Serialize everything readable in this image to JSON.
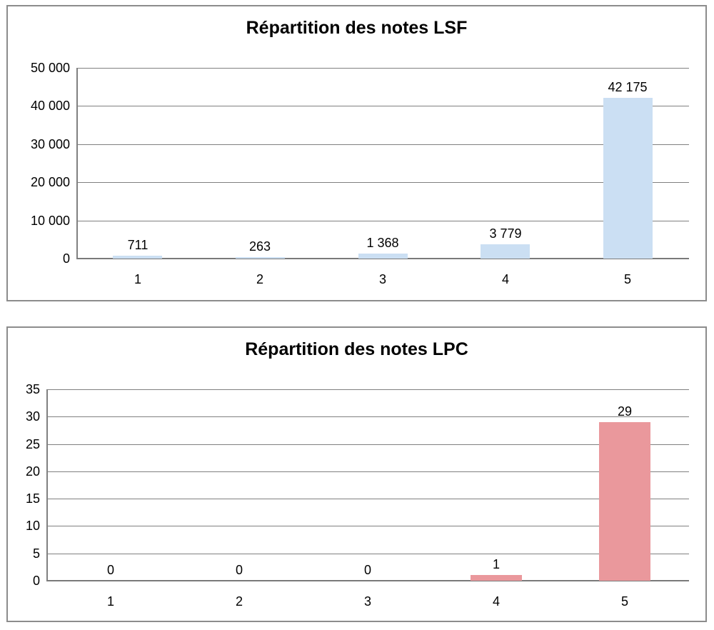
{
  "chart_data": [
    {
      "type": "bar",
      "title": "Répartition des notes LSF",
      "categories": [
        "1",
        "2",
        "3",
        "4",
        "5"
      ],
      "values": [
        711,
        263,
        1368,
        3779,
        42175
      ],
      "value_labels": [
        "711",
        "263",
        "1 368",
        "3 779",
        "42 175"
      ],
      "ylim": [
        0,
        50000
      ],
      "ytick_step": 10000,
      "ytick_labels": [
        "50 000",
        "40 000",
        "30 000",
        "20 000",
        "10 000",
        "0"
      ],
      "bar_color": "#cbdff3",
      "grid": "horizontal-major",
      "legend": "none",
      "xlabel": "",
      "ylabel": ""
    },
    {
      "type": "bar",
      "title": "Répartition des notes LPC",
      "categories": [
        "1",
        "2",
        "3",
        "4",
        "5"
      ],
      "values": [
        0,
        0,
        0,
        1,
        29
      ],
      "value_labels": [
        "0",
        "0",
        "0",
        "1",
        "29"
      ],
      "ylim": [
        0,
        35
      ],
      "ytick_step": 5,
      "ytick_labels": [
        "35",
        "30",
        "25",
        "20",
        "15",
        "10",
        "5",
        "0"
      ],
      "bar_color": "#ea989c",
      "grid": "horizontal-major",
      "legend": "none",
      "xlabel": "",
      "ylabel": ""
    }
  ],
  "colors": {
    "lsf_bar": "#cbdff3",
    "lpc_bar": "#ea989c",
    "gridline": "#808080",
    "panel_border": "#8c8c8c",
    "text": "#000000"
  }
}
